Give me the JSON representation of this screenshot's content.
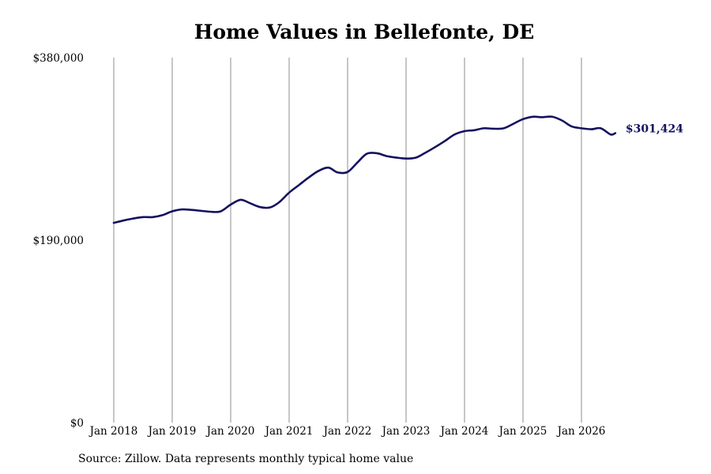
{
  "chart_data": {
    "type": "line",
    "title": "Home Values in Bellefonte, DE",
    "xlabel": "",
    "ylabel": "",
    "y_tick_labels": [
      "$380,000",
      "$190,000",
      "$0"
    ],
    "y_ticks": [
      380000,
      190000,
      0
    ],
    "ylim": [
      0,
      380000
    ],
    "x_tick_labels": [
      "Jan 2018",
      "Jan 2019",
      "Jan 2020",
      "Jan 2021",
      "Jan 2022",
      "Jan 2023",
      "Jan 2024",
      "Jan 2025",
      "Jan 2026"
    ],
    "x_ticks": [
      2018,
      2019,
      2020,
      2021,
      2022,
      2023,
      2024,
      2025,
      2026
    ],
    "xlim": [
      2018,
      2026.58
    ],
    "grid": "vertical",
    "line_color": "#14125e",
    "series": [
      {
        "end_label": "$301,424",
        "points": [
          [
            2018.0,
            208000
          ],
          [
            2018.17,
            210500
          ],
          [
            2018.33,
            212500
          ],
          [
            2018.5,
            214000
          ],
          [
            2018.67,
            214000
          ],
          [
            2018.83,
            216000
          ],
          [
            2019.0,
            220000
          ],
          [
            2019.17,
            222000
          ],
          [
            2019.33,
            221500
          ],
          [
            2019.5,
            220500
          ],
          [
            2019.67,
            219500
          ],
          [
            2019.83,
            220000
          ],
          [
            2020.0,
            227000
          ],
          [
            2020.17,
            232000
          ],
          [
            2020.33,
            228500
          ],
          [
            2020.5,
            224500
          ],
          [
            2020.67,
            224000
          ],
          [
            2020.83,
            229500
          ],
          [
            2021.0,
            239500
          ],
          [
            2021.17,
            247500
          ],
          [
            2021.33,
            255000
          ],
          [
            2021.5,
            262000
          ],
          [
            2021.67,
            265500
          ],
          [
            2021.83,
            260500
          ],
          [
            2022.0,
            261000
          ],
          [
            2022.17,
            271000
          ],
          [
            2022.33,
            280000
          ],
          [
            2022.5,
            280500
          ],
          [
            2022.67,
            277500
          ],
          [
            2022.83,
            276000
          ],
          [
            2023.0,
            275000
          ],
          [
            2023.17,
            276000
          ],
          [
            2023.33,
            281000
          ],
          [
            2023.5,
            287000
          ],
          [
            2023.67,
            293500
          ],
          [
            2023.83,
            300000
          ],
          [
            2024.0,
            303500
          ],
          [
            2024.17,
            304500
          ],
          [
            2024.33,
            306500
          ],
          [
            2024.5,
            306000
          ],
          [
            2024.67,
            306500
          ],
          [
            2024.83,
            311000
          ],
          [
            2025.0,
            316000
          ],
          [
            2025.17,
            318500
          ],
          [
            2025.33,
            318000
          ],
          [
            2025.5,
            318500
          ],
          [
            2025.67,
            314500
          ],
          [
            2025.83,
            308500
          ],
          [
            2026.0,
            306500
          ],
          [
            2026.17,
            305500
          ],
          [
            2026.33,
            306500
          ],
          [
            2026.5,
            300000
          ],
          [
            2026.58,
            301424
          ]
        ]
      }
    ]
  },
  "footer": {
    "source": "Source: Zillow. Data represents monthly typical home value"
  }
}
